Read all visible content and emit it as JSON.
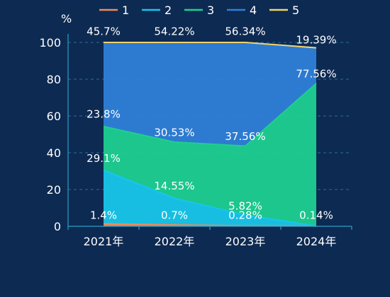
{
  "chart_data": {
    "type": "area",
    "stacked": true,
    "unit": "%",
    "categories": [
      "2021年",
      "2022年",
      "2023年",
      "2024年"
    ],
    "ylim": [
      0,
      100
    ],
    "yticks": [
      0,
      20,
      40,
      60,
      80,
      100
    ],
    "legend_position": "top",
    "series": [
      {
        "name": "1",
        "color": "#f08a5d",
        "values": [
          1.4,
          0.7,
          0.28,
          0.14
        ],
        "labels": [
          "1.4%",
          "0.7%",
          "0.28%",
          "0.14%"
        ]
      },
      {
        "name": "2",
        "color": "#18c6ea",
        "values": [
          29.1,
          14.55,
          5.82,
          0.0
        ],
        "labels": [
          "29.1%",
          "14.55%",
          "5.82%",
          ""
        ]
      },
      {
        "name": "3",
        "color": "#1fcf90",
        "values": [
          23.8,
          30.53,
          37.56,
          77.56
        ],
        "labels": [
          "23.8%",
          "30.53%",
          "37.56%",
          "77.56%"
        ]
      },
      {
        "name": "4",
        "color": "#2f80d8",
        "values": [
          45.7,
          54.22,
          56.34,
          19.39
        ],
        "labels": [
          "45.7%",
          "54.22%",
          "56.34%",
          "19.39%"
        ]
      },
      {
        "name": "5",
        "color": "#f2d36b",
        "values": [
          0.0,
          0.0,
          0.0,
          0.0
        ],
        "labels": [
          "",
          "",
          "",
          ""
        ]
      }
    ]
  }
}
